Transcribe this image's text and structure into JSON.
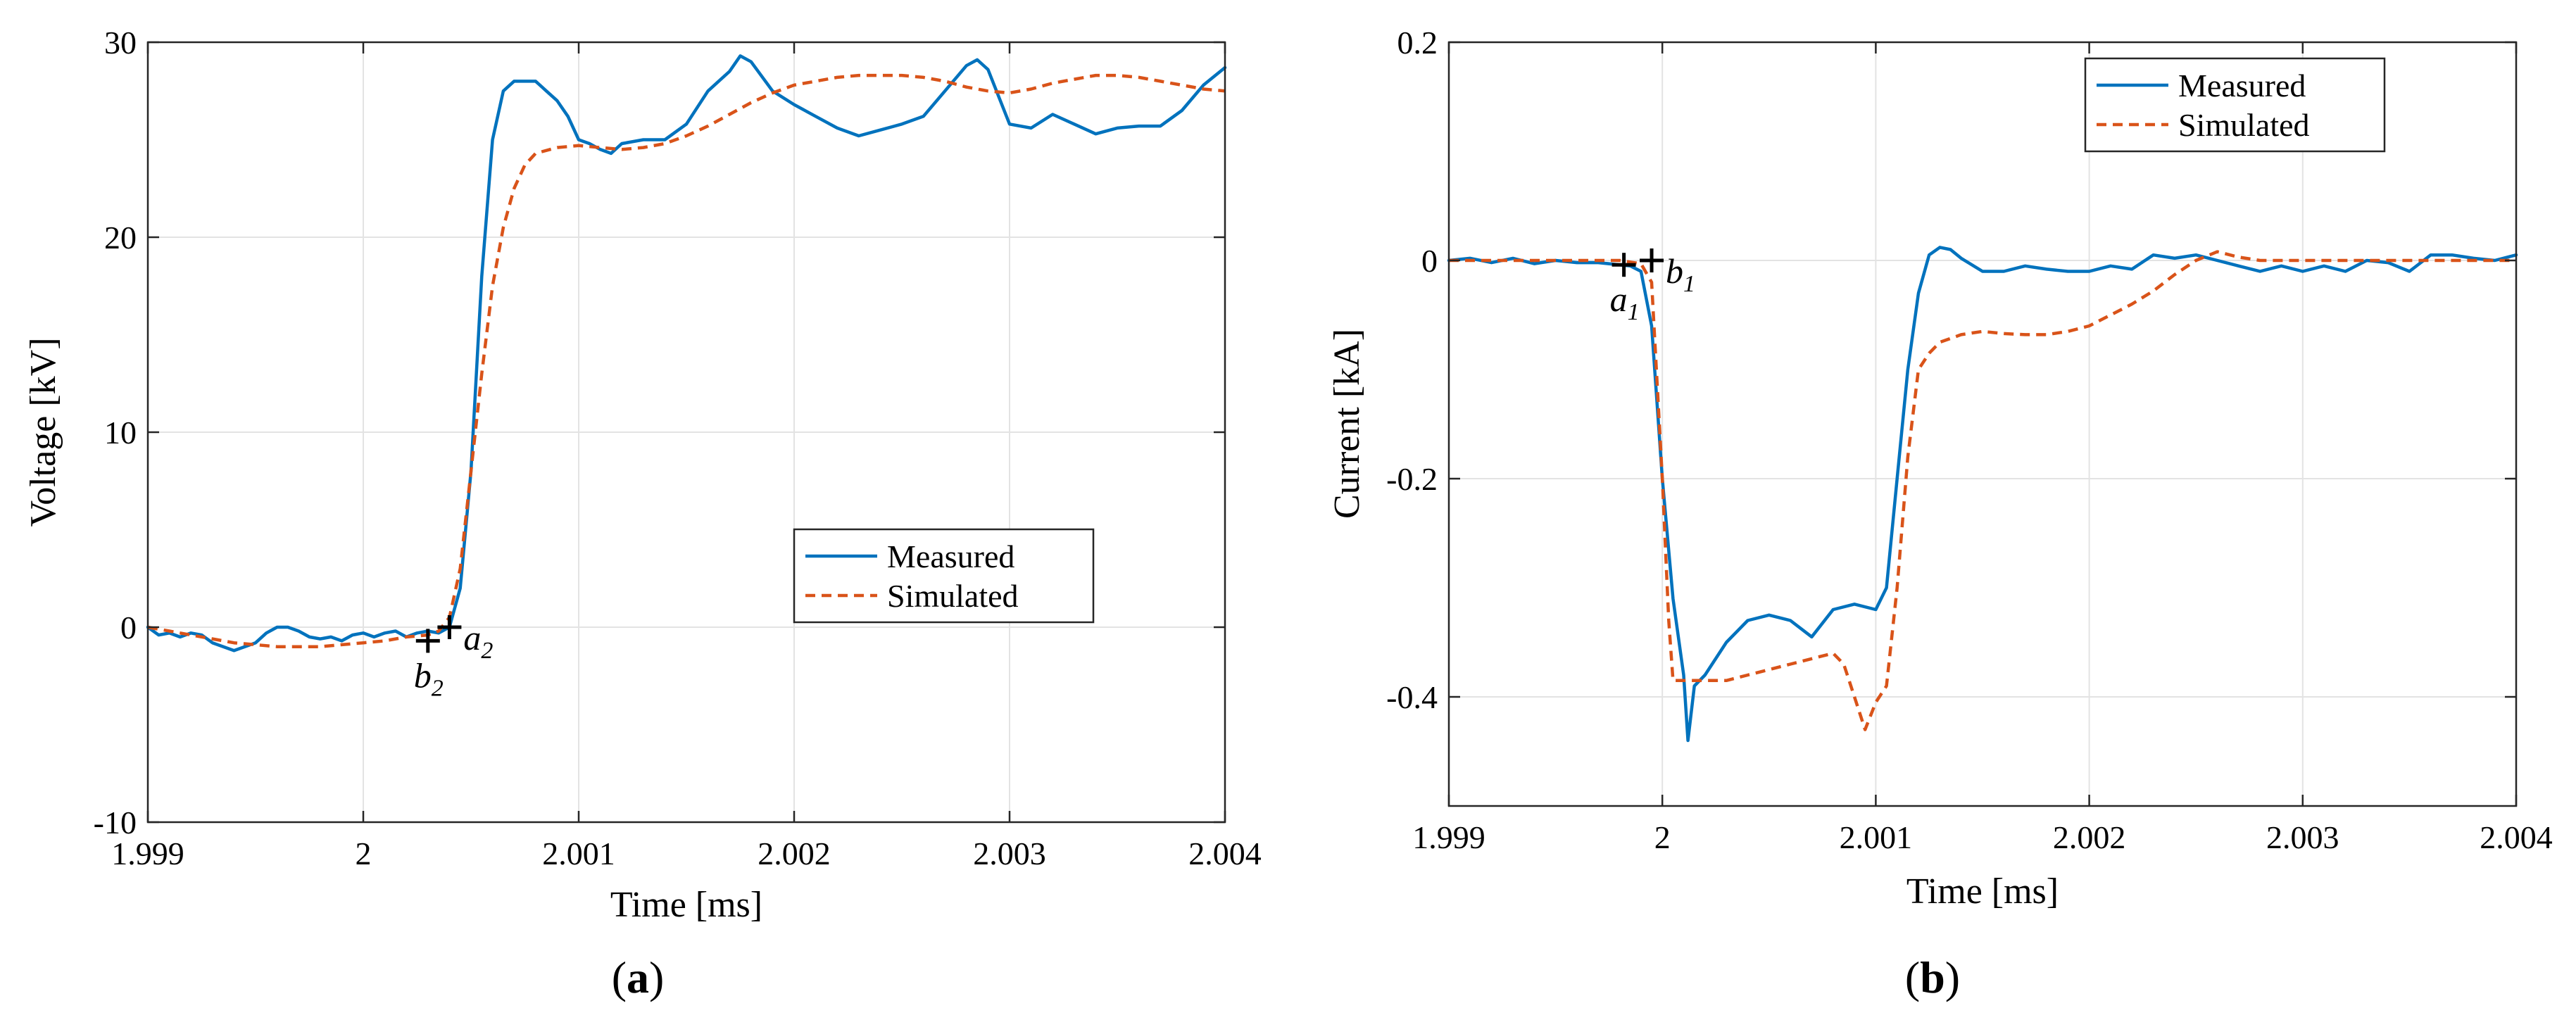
{
  "chart_data": [
    {
      "type": "line",
      "panel_label": "a",
      "xlabel": "Time [ms]",
      "ylabel": "Voltage [kV]",
      "xlim": [
        1.999,
        2.004
      ],
      "ylim": [
        -10,
        30
      ],
      "xticks": [
        1.999,
        2.0,
        2.001,
        2.002,
        2.003,
        2.004
      ],
      "xtick_labels": [
        "1.999",
        "2",
        "2.001",
        "2.002",
        "2.003",
        "2.004"
      ],
      "yticks": [
        -10,
        0,
        10,
        20,
        30
      ],
      "ytick_labels": [
        "-10",
        "0",
        "10",
        "20",
        "30"
      ],
      "grid": true,
      "legend_position": "lower-right",
      "series": [
        {
          "name": "Measured",
          "color": "#0072bd",
          "style": "solid",
          "x": [
            1.999,
            1.99905,
            1.9991,
            1.99915,
            1.9992,
            1.99925,
            1.9993,
            1.99935,
            1.9994,
            1.99945,
            1.9995,
            1.99955,
            1.9996,
            1.99965,
            1.9997,
            1.99975,
            1.9998,
            1.99985,
            1.9999,
            1.99995,
            2.0,
            2.00005,
            2.0001,
            2.00015,
            2.0002,
            2.00025,
            2.0003,
            2.00035,
            2.0004,
            2.00045,
            2.0005,
            2.00055,
            2.0006,
            2.00065,
            2.0007,
            2.00075,
            2.0008,
            2.00085,
            2.0009,
            2.00095,
            2.001,
            2.00105,
            2.0011,
            2.00115,
            2.0012,
            2.0013,
            2.0014,
            2.0015,
            2.0016,
            2.0017,
            2.00175,
            2.0018,
            2.0019,
            2.002,
            2.0021,
            2.0022,
            2.0023,
            2.0024,
            2.0025,
            2.0026,
            2.0027,
            2.0028,
            2.00285,
            2.0029,
            2.003,
            2.0031,
            2.0032,
            2.0033,
            2.0034,
            2.0035,
            2.0036,
            2.0037,
            2.0038,
            2.0039,
            2.004
          ],
          "y": [
            0.0,
            -0.4,
            -0.3,
            -0.5,
            -0.3,
            -0.4,
            -0.8,
            -1.0,
            -1.2,
            -1.0,
            -0.8,
            -0.3,
            0.0,
            0.0,
            -0.2,
            -0.5,
            -0.6,
            -0.5,
            -0.7,
            -0.4,
            -0.3,
            -0.5,
            -0.3,
            -0.2,
            -0.5,
            -0.3,
            -0.2,
            -0.3,
            0.0,
            2.0,
            8.0,
            18.0,
            25.0,
            27.5,
            28.0,
            28.0,
            28.0,
            27.5,
            27.0,
            26.2,
            25.0,
            24.8,
            24.5,
            24.3,
            24.8,
            25.0,
            25.0,
            25.8,
            27.5,
            28.5,
            29.3,
            29.0,
            27.5,
            26.8,
            26.2,
            25.6,
            25.2,
            25.5,
            25.8,
            26.2,
            27.5,
            28.8,
            29.1,
            28.6,
            25.8,
            25.6,
            26.3,
            25.8,
            25.3,
            25.6,
            25.7,
            25.7,
            26.5,
            27.8,
            28.7
          ]
        },
        {
          "name": "Simulated",
          "color": "#d95319",
          "style": "dashed",
          "x": [
            1.999,
            1.9991,
            1.9992,
            1.9993,
            1.9994,
            1.9995,
            1.9996,
            1.9997,
            1.9998,
            1.9999,
            2.0,
            2.0001,
            2.0002,
            2.0003,
            2.00035,
            2.0004,
            2.00045,
            2.0005,
            2.00055,
            2.0006,
            2.00065,
            2.0007,
            2.00075,
            2.0008,
            2.0009,
            2.001,
            2.0011,
            2.0012,
            2.0013,
            2.0014,
            2.0015,
            2.0016,
            2.0017,
            2.0018,
            2.0019,
            2.002,
            2.0021,
            2.0022,
            2.0023,
            2.0024,
            2.0025,
            2.0026,
            2.0027,
            2.0028,
            2.0029,
            2.003,
            2.0031,
            2.0032,
            2.0033,
            2.0034,
            2.0035,
            2.0036,
            2.0037,
            2.0038,
            2.0039,
            2.004
          ],
          "y": [
            0.0,
            -0.2,
            -0.4,
            -0.6,
            -0.8,
            -0.9,
            -1.0,
            -1.0,
            -1.0,
            -0.9,
            -0.8,
            -0.7,
            -0.5,
            -0.4,
            -0.2,
            0.5,
            3.0,
            8.0,
            13.0,
            17.5,
            20.5,
            22.5,
            23.7,
            24.3,
            24.6,
            24.7,
            24.6,
            24.5,
            24.6,
            24.8,
            25.2,
            25.7,
            26.3,
            26.9,
            27.4,
            27.8,
            28.0,
            28.2,
            28.3,
            28.3,
            28.3,
            28.2,
            28.0,
            27.7,
            27.5,
            27.4,
            27.6,
            27.9,
            28.1,
            28.3,
            28.3,
            28.2,
            28.0,
            27.8,
            27.6,
            27.5
          ]
        }
      ],
      "markers": [
        {
          "symbol": "+",
          "label": "b",
          "subscript": "2",
          "x": 2.0003,
          "y": -0.7,
          "label_side": "below"
        },
        {
          "symbol": "+",
          "label": "a",
          "subscript": "2",
          "x": 2.0004,
          "y": 0.0,
          "label_side": "right"
        }
      ]
    },
    {
      "type": "line",
      "panel_label": "b",
      "xlabel": "Time [ms]",
      "ylabel": "Current [kA]",
      "xlim": [
        1.999,
        2.004
      ],
      "ylim": [
        -0.5,
        0.2
      ],
      "xticks": [
        1.999,
        2.0,
        2.001,
        2.002,
        2.003,
        2.004
      ],
      "xtick_labels": [
        "1.999",
        "2",
        "2.001",
        "2.002",
        "2.003",
        "2.004"
      ],
      "yticks": [
        -0.4,
        -0.2,
        0.0,
        0.2
      ],
      "ytick_labels": [
        "-0.4",
        "-0.2",
        "0",
        "0.2"
      ],
      "grid": true,
      "legend_position": "top-right",
      "series": [
        {
          "name": "Measured",
          "color": "#0072bd",
          "style": "solid",
          "x": [
            1.999,
            1.9991,
            1.9992,
            1.9993,
            1.9994,
            1.9995,
            1.9996,
            1.9997,
            1.9998,
            1.99985,
            1.9999,
            1.99995,
            2.0,
            2.00005,
            2.0001,
            2.00012,
            2.00015,
            2.0002,
            2.0003,
            2.0004,
            2.0005,
            2.0006,
            2.0007,
            2.0008,
            2.0009,
            2.001,
            2.00105,
            2.0011,
            2.00115,
            2.0012,
            2.00125,
            2.0013,
            2.00135,
            2.0014,
            2.0015,
            2.0016,
            2.0017,
            2.0018,
            2.0019,
            2.002,
            2.0021,
            2.0022,
            2.0023,
            2.0024,
            2.0025,
            2.0026,
            2.0027,
            2.0028,
            2.0029,
            2.003,
            2.0031,
            2.0032,
            2.0033,
            2.0034,
            2.0035,
            2.0036,
            2.0037,
            2.0038,
            2.0039,
            2.004
          ],
          "y": [
            0.0,
            0.002,
            -0.002,
            0.002,
            -0.003,
            0.0,
            -0.002,
            -0.002,
            -0.004,
            -0.005,
            -0.01,
            -0.06,
            -0.2,
            -0.31,
            -0.38,
            -0.44,
            -0.39,
            -0.38,
            -0.35,
            -0.33,
            -0.325,
            -0.33,
            -0.345,
            -0.32,
            -0.315,
            -0.32,
            -0.3,
            -0.2,
            -0.1,
            -0.03,
            0.005,
            0.012,
            0.01,
            0.002,
            -0.01,
            -0.01,
            -0.005,
            -0.008,
            -0.01,
            -0.01,
            -0.005,
            -0.008,
            0.005,
            0.002,
            0.005,
            0.0,
            -0.005,
            -0.01,
            -0.005,
            -0.01,
            -0.005,
            -0.01,
            0.0,
            -0.002,
            -0.01,
            0.005,
            0.005,
            0.002,
            0.0,
            0.005
          ]
        },
        {
          "name": "Simulated",
          "color": "#d95319",
          "style": "dashed",
          "x": [
            1.999,
            1.9992,
            1.9994,
            1.9996,
            1.9998,
            1.9999,
            1.99995,
            2.0,
            2.00003,
            2.00005,
            2.0001,
            2.0002,
            2.0003,
            2.0004,
            2.0005,
            2.0006,
            2.0007,
            2.0008,
            2.00085,
            2.0009,
            2.00095,
            2.001,
            2.00105,
            2.0011,
            2.00115,
            2.0012,
            2.00125,
            2.0013,
            2.0014,
            2.0015,
            2.0016,
            2.0017,
            2.0018,
            2.0019,
            2.002,
            2.0021,
            2.0022,
            2.0023,
            2.0024,
            2.0025,
            2.0026,
            2.0027,
            2.0028,
            2.0029,
            2.003,
            2.0031,
            2.0032,
            2.0033,
            2.0034,
            2.0035,
            2.0036,
            2.0037,
            2.0038,
            2.0039,
            2.004
          ],
          "y": [
            0.0,
            0.0,
            0.0,
            0.0,
            0.0,
            -0.003,
            -0.02,
            -0.2,
            -0.33,
            -0.385,
            -0.385,
            -0.385,
            -0.385,
            -0.38,
            -0.375,
            -0.37,
            -0.365,
            -0.36,
            -0.37,
            -0.4,
            -0.43,
            -0.405,
            -0.39,
            -0.3,
            -0.18,
            -0.1,
            -0.085,
            -0.075,
            -0.068,
            -0.065,
            -0.067,
            -0.068,
            -0.068,
            -0.065,
            -0.06,
            -0.05,
            -0.04,
            -0.028,
            -0.013,
            0.0,
            0.008,
            0.003,
            0.0,
            0.0,
            0.0,
            0.0,
            0.0,
            0.0,
            0.0,
            0.0,
            0.0,
            0.0,
            0.0,
            0.0,
            0.0
          ]
        }
      ],
      "markers": [
        {
          "symbol": "+",
          "label": "a",
          "subscript": "1",
          "x": 1.99982,
          "y": -0.004,
          "label_side": "below"
        },
        {
          "symbol": "+",
          "label": "b",
          "subscript": "1",
          "x": 1.99995,
          "y": 0.0,
          "label_side": "right"
        }
      ]
    }
  ]
}
